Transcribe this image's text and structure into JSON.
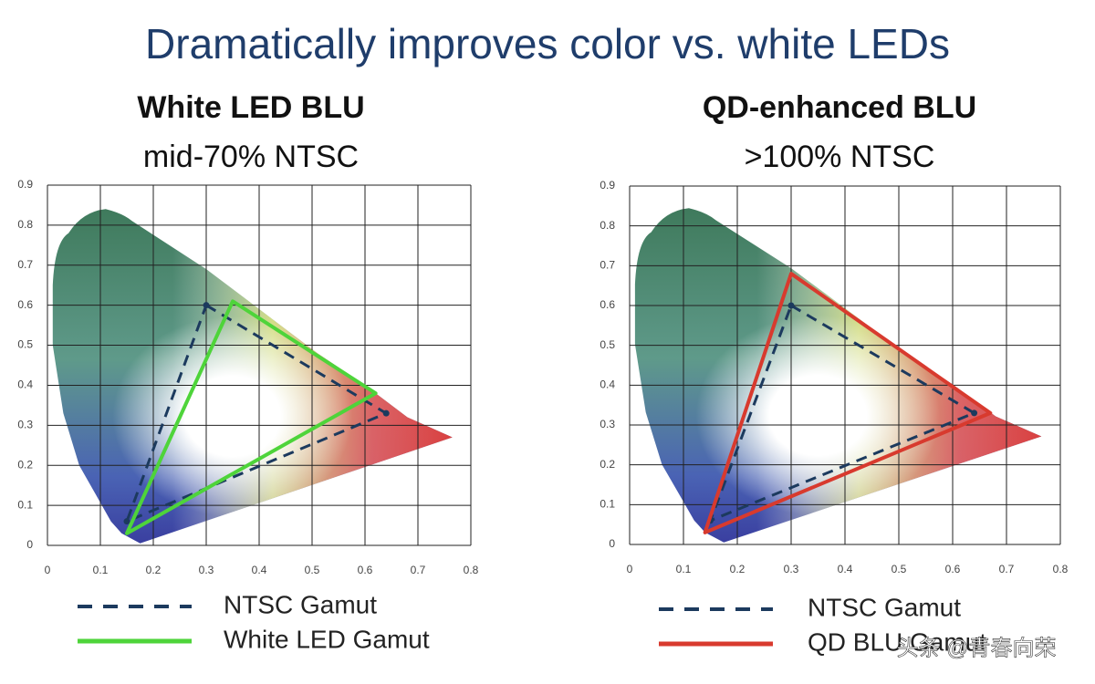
{
  "title": "Dramatically improves color vs. white LEDs",
  "watermark": "头条 @青春向荣",
  "chart_data": [
    {
      "type": "line",
      "title": "White LED BLU",
      "subtitle": "mid-70% NTSC",
      "xlim": [
        0,
        0.8
      ],
      "xticks": [
        0,
        0.1,
        0.2,
        0.3,
        0.4,
        0.5,
        0.6,
        0.7,
        0.8
      ],
      "ylim": [
        0,
        0.9
      ],
      "yticks": [
        0,
        0.1,
        0.2,
        0.3,
        0.4,
        0.5,
        0.6,
        0.7,
        0.8,
        0.9
      ],
      "grid": true,
      "series": [
        {
          "name": "NTSC Gamut",
          "color": "#1c3a5e",
          "line_style": "dashed",
          "markers": true,
          "x": [
            0.3,
            0.64,
            0.15
          ],
          "values": [
            0.6,
            0.33,
            0.06
          ]
        },
        {
          "name": "White LED Gamut",
          "color": "#4ed43a",
          "line_style": "solid",
          "markers": false,
          "x": [
            0.35,
            0.62,
            0.15
          ],
          "values": [
            0.61,
            0.38,
            0.03
          ]
        }
      ]
    },
    {
      "type": "line",
      "title": "QD-enhanced BLU",
      "subtitle": ">100% NTSC",
      "xlim": [
        0,
        0.8
      ],
      "xticks": [
        0,
        0.1,
        0.2,
        0.3,
        0.4,
        0.5,
        0.6,
        0.7,
        0.8
      ],
      "ylim": [
        0,
        0.9
      ],
      "yticks": [
        0,
        0.1,
        0.2,
        0.3,
        0.4,
        0.5,
        0.6,
        0.7,
        0.8,
        0.9
      ],
      "grid": true,
      "series": [
        {
          "name": "NTSC Gamut",
          "color": "#1c3a5e",
          "line_style": "dashed",
          "markers": true,
          "x": [
            0.3,
            0.64,
            0.15
          ],
          "values": [
            0.6,
            0.33,
            0.06
          ]
        },
        {
          "name": "QD BLU Gamut",
          "color": "#d83a2e",
          "line_style": "solid",
          "markers": false,
          "x": [
            0.3,
            0.67,
            0.14
          ],
          "values": [
            0.68,
            0.33,
            0.03
          ]
        }
      ]
    }
  ]
}
